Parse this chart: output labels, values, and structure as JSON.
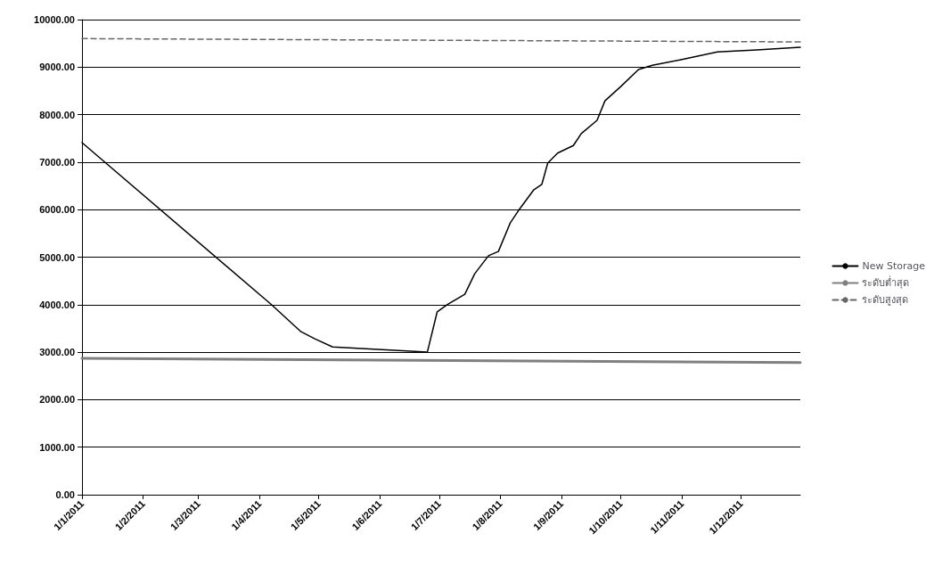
{
  "chart_data": {
    "type": "line",
    "x": [
      "2011-01-01",
      "2011-04-07",
      "2011-04-22",
      "2011-04-29",
      "2011-05-08",
      "2011-05-31",
      "2011-06-25",
      "2011-06-30",
      "2011-07-05",
      "2011-07-14",
      "2011-07-19",
      "2011-07-26",
      "2011-07-31",
      "2011-08-06",
      "2011-08-10",
      "2011-08-18",
      "2011-08-22",
      "2011-08-25",
      "2011-08-30",
      "2011-09-07",
      "2011-09-11",
      "2011-09-19",
      "2011-09-23",
      "2011-10-01",
      "2011-10-10",
      "2011-10-17",
      "2011-11-01",
      "2011-11-19",
      "2011-12-09",
      "2011-12-31"
    ],
    "series": [
      {
        "name": "New Storage",
        "color": "#000000",
        "line_style": "solid",
        "values": [
          7410,
          4000,
          3430,
          3280,
          3110,
          3060,
          3000,
          3850,
          4000,
          4220,
          4650,
          5030,
          5120,
          5720,
          5970,
          6420,
          6530,
          6980,
          7190,
          7350,
          7600,
          7880,
          8290,
          8590,
          8950,
          9040,
          9160,
          9320,
          9360,
          9420
        ]
      },
      {
        "name": "ระดับต่ำสุด",
        "color": "#808080",
        "line_style": "solid",
        "x": [
          "2011-01-01",
          "2011-12-31"
        ],
        "values": [
          2870,
          2780
        ]
      },
      {
        "name": "ระดับสูงสุด",
        "color": "#666666",
        "line_style": "dashed",
        "x": [
          "2011-01-01",
          "2011-12-31"
        ],
        "values": [
          9600,
          9530
        ]
      }
    ],
    "xlim": [
      "2011-01-01",
      "2011-12-31"
    ],
    "xticks": [
      {
        "value": "2011-01-01",
        "label": "1/1/2011"
      },
      {
        "value": "2011-02-01",
        "label": "1/2/2011"
      },
      {
        "value": "2011-03-01",
        "label": "1/3/2011"
      },
      {
        "value": "2011-04-01",
        "label": "1/4/2011"
      },
      {
        "value": "2011-05-01",
        "label": "1/5/2011"
      },
      {
        "value": "2011-06-01",
        "label": "1/6/2011"
      },
      {
        "value": "2011-07-01",
        "label": "1/7/2011"
      },
      {
        "value": "2011-08-01",
        "label": "1/8/2011"
      },
      {
        "value": "2011-09-01",
        "label": "1/9/2011"
      },
      {
        "value": "2011-10-01",
        "label": "1/10/2011"
      },
      {
        "value": "2011-11-01",
        "label": "1/11/2011"
      },
      {
        "value": "2011-12-01",
        "label": "1/12/2011"
      }
    ],
    "ylim": [
      0,
      10000
    ],
    "yticks": [
      {
        "value": 0,
        "label": "0.00"
      },
      {
        "value": 1000,
        "label": "1000.00"
      },
      {
        "value": 2000,
        "label": "2000.00"
      },
      {
        "value": 3000,
        "label": "3000.00"
      },
      {
        "value": 4000,
        "label": "4000.00"
      },
      {
        "value": 5000,
        "label": "5000.00"
      },
      {
        "value": 6000,
        "label": "6000.00"
      },
      {
        "value": 7000,
        "label": "7000.00"
      },
      {
        "value": 8000,
        "label": "8000.00"
      },
      {
        "value": 9000,
        "label": "9000.00"
      },
      {
        "value": 10000,
        "label": "10000.00"
      }
    ],
    "grid": "y",
    "legend": "right",
    "marker": "none"
  }
}
